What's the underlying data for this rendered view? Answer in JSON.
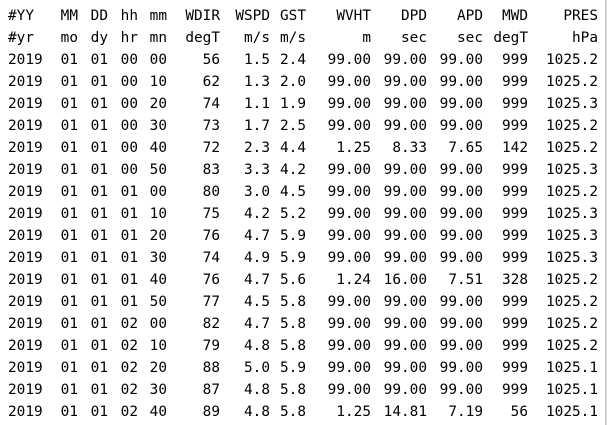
{
  "table": {
    "header": [
      "#YY",
      "MM",
      "DD",
      "hh",
      "mm",
      "WDIR",
      "WSPD",
      "GST",
      "WVHT",
      "DPD",
      "APD",
      "MWD",
      "PRES"
    ],
    "units": [
      "#yr",
      "mo",
      "dy",
      "hr",
      "mn",
      "degT",
      "m/s",
      "m/s",
      "m",
      "sec",
      "sec",
      "degT",
      "hPa"
    ],
    "rows": [
      [
        "2019",
        "01",
        "01",
        "00",
        "00",
        "56",
        "1.5",
        "2.4",
        "99.00",
        "99.00",
        "99.00",
        "999",
        "1025.2"
      ],
      [
        "2019",
        "01",
        "01",
        "00",
        "10",
        "62",
        "1.3",
        "2.0",
        "99.00",
        "99.00",
        "99.00",
        "999",
        "1025.2"
      ],
      [
        "2019",
        "01",
        "01",
        "00",
        "20",
        "74",
        "1.1",
        "1.9",
        "99.00",
        "99.00",
        "99.00",
        "999",
        "1025.3"
      ],
      [
        "2019",
        "01",
        "01",
        "00",
        "30",
        "73",
        "1.7",
        "2.5",
        "99.00",
        "99.00",
        "99.00",
        "999",
        "1025.2"
      ],
      [
        "2019",
        "01",
        "01",
        "00",
        "40",
        "72",
        "2.3",
        "4.4",
        "1.25",
        "8.33",
        "7.65",
        "142",
        "1025.2"
      ],
      [
        "2019",
        "01",
        "01",
        "00",
        "50",
        "83",
        "3.3",
        "4.2",
        "99.00",
        "99.00",
        "99.00",
        "999",
        "1025.3"
      ],
      [
        "2019",
        "01",
        "01",
        "01",
        "00",
        "80",
        "3.0",
        "4.5",
        "99.00",
        "99.00",
        "99.00",
        "999",
        "1025.2"
      ],
      [
        "2019",
        "01",
        "01",
        "01",
        "10",
        "75",
        "4.2",
        "5.2",
        "99.00",
        "99.00",
        "99.00",
        "999",
        "1025.3"
      ],
      [
        "2019",
        "01",
        "01",
        "01",
        "20",
        "76",
        "4.7",
        "5.9",
        "99.00",
        "99.00",
        "99.00",
        "999",
        "1025.3"
      ],
      [
        "2019",
        "01",
        "01",
        "01",
        "30",
        "74",
        "4.9",
        "5.9",
        "99.00",
        "99.00",
        "99.00",
        "999",
        "1025.3"
      ],
      [
        "2019",
        "01",
        "01",
        "01",
        "40",
        "76",
        "4.7",
        "5.6",
        "1.24",
        "16.00",
        "7.51",
        "328",
        "1025.2"
      ],
      [
        "2019",
        "01",
        "01",
        "01",
        "50",
        "77",
        "4.5",
        "5.8",
        "99.00",
        "99.00",
        "99.00",
        "999",
        "1025.2"
      ],
      [
        "2019",
        "01",
        "01",
        "02",
        "00",
        "82",
        "4.7",
        "5.8",
        "99.00",
        "99.00",
        "99.00",
        "999",
        "1025.2"
      ],
      [
        "2019",
        "01",
        "01",
        "02",
        "10",
        "79",
        "4.8",
        "5.8",
        "99.00",
        "99.00",
        "99.00",
        "999",
        "1025.2"
      ],
      [
        "2019",
        "01",
        "01",
        "02",
        "20",
        "88",
        "5.0",
        "5.9",
        "99.00",
        "99.00",
        "99.00",
        "999",
        "1025.1"
      ],
      [
        "2019",
        "01",
        "01",
        "02",
        "30",
        "87",
        "4.8",
        "5.8",
        "99.00",
        "99.00",
        "99.00",
        "999",
        "1025.1"
      ],
      [
        "2019",
        "01",
        "01",
        "02",
        "40",
        "89",
        "4.8",
        "5.8",
        "1.25",
        "14.81",
        "7.19",
        "56",
        "1025.1"
      ]
    ]
  }
}
